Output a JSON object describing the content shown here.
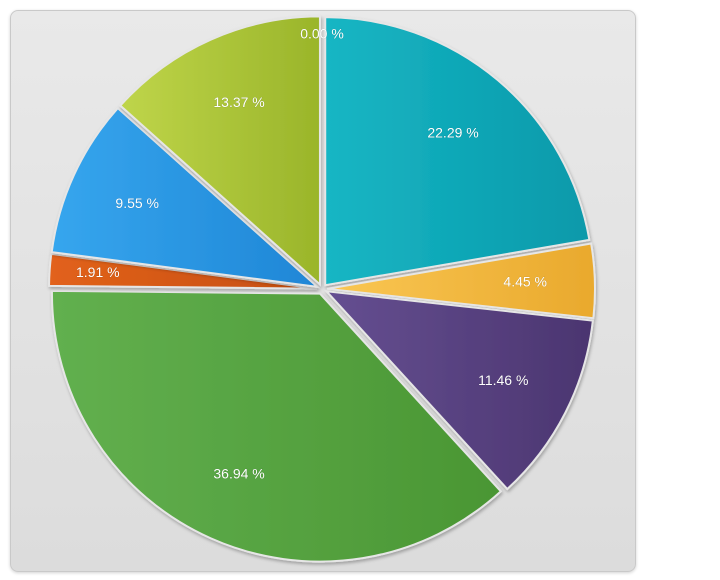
{
  "chart_data": {
    "type": "pie",
    "title": "",
    "start_angle_deg": 0,
    "direction": "clockwise",
    "slices": [
      {
        "value": 0.0,
        "label": "0.00 %",
        "color": "#1fb6c4",
        "color_dark": "#1aa9b6"
      },
      {
        "value": 22.29,
        "label": "22.29 %",
        "color": "#18b6c4",
        "color_dark": "#0799aa"
      },
      {
        "value": 4.45,
        "label": "4.45 %",
        "color": "#fac754",
        "color_dark": "#e9a92d"
      },
      {
        "value": 11.46,
        "label": "11.46 %",
        "color": "#654f91",
        "color_dark": "#4b3570"
      },
      {
        "value": 36.94,
        "label": "36.94 %",
        "color": "#62b04f",
        "color_dark": "#4a9633"
      },
      {
        "value": 1.91,
        "label": "1.91 %",
        "color": "#e2621b",
        "color_dark": "#c54e0f"
      },
      {
        "value": 9.55,
        "label": "9.55 %",
        "color": "#36a6ee",
        "color_dark": "#1f86d6"
      },
      {
        "value": 13.37,
        "label": "13.37 %",
        "color": "#bfd54a",
        "color_dark": "#9ab52a"
      }
    ]
  }
}
